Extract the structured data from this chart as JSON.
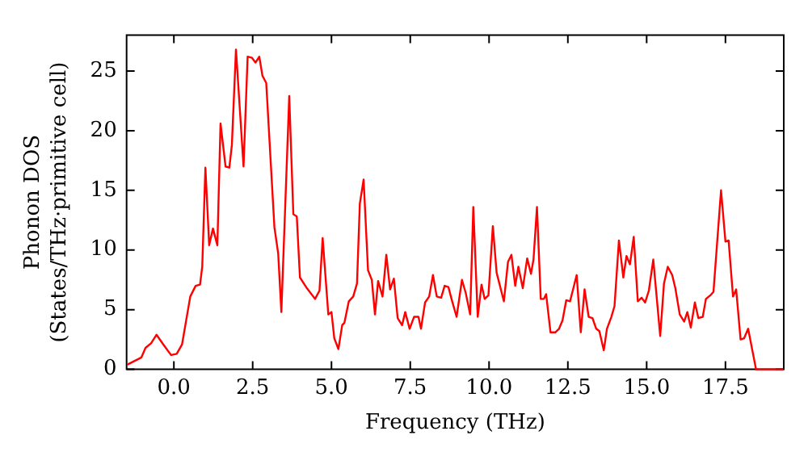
{
  "chart_data": {
    "type": "line",
    "xlabel": "Frequency (THz)",
    "ylabel": "Phonon DOS\n(States/THz·primitive cell)",
    "xlim": [
      -1.5,
      19.35
    ],
    "ylim": [
      0,
      28
    ],
    "xticks": [
      {
        "value": 0,
        "label": "0.0"
      },
      {
        "value": 2.5,
        "label": "2.5"
      },
      {
        "value": 5,
        "label": "5.0"
      },
      {
        "value": 7.5,
        "label": "7.5"
      },
      {
        "value": 10,
        "label": "10.0"
      },
      {
        "value": 12.5,
        "label": "12.5"
      },
      {
        "value": 15,
        "label": "15.0"
      },
      {
        "value": 17.5,
        "label": "17.5"
      }
    ],
    "yticks": [
      0,
      5,
      10,
      15,
      20,
      25
    ],
    "grid": false,
    "legend": false,
    "marker": "none",
    "line_style": "solid",
    "series": [
      {
        "color": "#ff0000",
        "x": [
          -1.47,
          -1.03,
          -0.9,
          -0.72,
          -0.55,
          -0.34,
          -0.09,
          0.09,
          0.26,
          0.52,
          0.69,
          0.83,
          0.9,
          1.0,
          1.12,
          1.24,
          1.38,
          1.48,
          1.64,
          1.76,
          1.84,
          1.97,
          2.21,
          2.34,
          2.48,
          2.59,
          2.71,
          2.81,
          2.93,
          3.19,
          3.31,
          3.41,
          3.66,
          3.79,
          3.9,
          4.0,
          4.22,
          4.48,
          4.62,
          4.72,
          4.9,
          5.0,
          5.09,
          5.22,
          5.34,
          5.41,
          5.55,
          5.69,
          5.81,
          5.9,
          6.02,
          6.16,
          6.28,
          6.38,
          6.48,
          6.62,
          6.74,
          6.86,
          6.98,
          7.1,
          7.24,
          7.34,
          7.48,
          7.62,
          7.76,
          7.84,
          7.97,
          8.1,
          8.22,
          8.34,
          8.48,
          8.59,
          8.71,
          8.83,
          8.97,
          9.14,
          9.26,
          9.4,
          9.5,
          9.64,
          9.76,
          9.86,
          9.98,
          10.12,
          10.24,
          10.47,
          10.6,
          10.71,
          10.83,
          10.93,
          11.07,
          11.21,
          11.33,
          11.41,
          11.52,
          11.64,
          11.74,
          11.81,
          11.95,
          12.1,
          12.22,
          12.33,
          12.45,
          12.57,
          12.78,
          12.91,
          13.03,
          13.16,
          13.28,
          13.4,
          13.5,
          13.64,
          13.74,
          13.88,
          13.98,
          14.12,
          14.26,
          14.36,
          14.47,
          14.59,
          14.72,
          14.84,
          14.95,
          15.07,
          15.21,
          15.43,
          15.55,
          15.67,
          15.81,
          15.91,
          16.05,
          16.19,
          16.29,
          16.4,
          16.53,
          16.64,
          16.78,
          16.88,
          17.02,
          17.12,
          17.36,
          17.5,
          17.6,
          17.74,
          17.84,
          17.98,
          18.09,
          18.22,
          18.47,
          19.34
        ],
        "values": [
          0.4,
          1.0,
          1.8,
          2.2,
          2.9,
          2.1,
          1.2,
          1.3,
          2.1,
          6.1,
          7.0,
          7.1,
          8.6,
          16.9,
          10.4,
          11.8,
          10.4,
          20.6,
          17.0,
          16.9,
          18.8,
          26.8,
          17.0,
          26.2,
          26.1,
          25.7,
          26.2,
          24.6,
          24.0,
          11.9,
          9.7,
          4.8,
          22.9,
          13.0,
          12.8,
          7.7,
          6.8,
          5.9,
          6.6,
          11.0,
          4.6,
          4.8,
          2.6,
          1.7,
          3.7,
          3.9,
          5.7,
          6.1,
          7.2,
          13.9,
          15.9,
          8.3,
          7.5,
          4.6,
          7.4,
          6.1,
          9.6,
          6.7,
          7.6,
          4.3,
          3.7,
          4.8,
          3.4,
          4.4,
          4.4,
          3.4,
          5.6,
          6.1,
          7.9,
          6.1,
          6.0,
          7.0,
          6.9,
          5.7,
          4.4,
          7.5,
          6.4,
          4.6,
          13.6,
          4.4,
          7.1,
          5.9,
          6.2,
          12.0,
          8.1,
          5.7,
          9.0,
          9.6,
          7.0,
          8.6,
          6.8,
          9.3,
          8.0,
          9.2,
          13.6,
          5.9,
          5.9,
          6.3,
          3.1,
          3.1,
          3.4,
          4.1,
          5.8,
          5.7,
          7.9,
          3.1,
          6.7,
          4.4,
          4.3,
          3.4,
          3.2,
          1.6,
          3.4,
          4.4,
          5.3,
          10.8,
          7.7,
          9.5,
          8.8,
          11.1,
          5.7,
          6.0,
          5.6,
          6.6,
          9.2,
          2.8,
          7.2,
          8.6,
          7.9,
          6.8,
          4.6,
          4.0,
          4.8,
          3.5,
          5.6,
          4.3,
          4.4,
          5.9,
          6.2,
          6.5,
          15.0,
          10.7,
          10.8,
          6.1,
          6.7,
          2.5,
          2.6,
          3.4,
          0,
          0
        ]
      }
    ]
  }
}
